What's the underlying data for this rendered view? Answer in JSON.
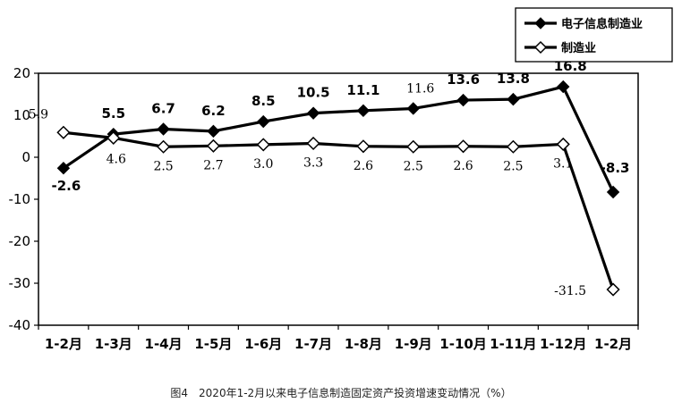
{
  "caption": "图4　2020年1-2月以来电子信息制造固定资产投资增速变动情况（%）",
  "chart_data": {
    "type": "line",
    "categories": [
      "1-2月",
      "1-3月",
      "1-4月",
      "1-5月",
      "1-6月",
      "1-7月",
      "1-8月",
      "1-9月",
      "1-10月",
      "1-11月",
      "1-12月",
      "1-2月"
    ],
    "ylim": [
      -40,
      20
    ],
    "yticks": [
      20,
      10,
      0,
      -10,
      -20,
      -30,
      -40
    ],
    "grid": false,
    "legend_position": "top-right",
    "series": [
      {
        "name": "电子信息制造业",
        "values": [
          -2.6,
          5.5,
          6.7,
          6.2,
          8.5,
          10.5,
          11.1,
          11.6,
          13.6,
          13.8,
          16.8,
          -8.3
        ],
        "labels": [
          "-2.6",
          "5.5",
          "6.7",
          "6.2",
          "8.5",
          "10.5",
          "11.1",
          "11.6",
          "13.6",
          "13.8",
          "16.8",
          "-8.3"
        ],
        "marker": "filled-diamond",
        "color": "#000000"
      },
      {
        "name": "制造业",
        "values": [
          5.9,
          4.6,
          2.5,
          2.7,
          3.0,
          3.3,
          2.6,
          2.5,
          2.6,
          2.5,
          3.1,
          -31.5
        ],
        "labels": [
          "5.9",
          "4.6",
          "2.5",
          "2.7",
          "3.0",
          "3.3",
          "2.6",
          "2.5",
          "2.6",
          "2.5",
          "3.1",
          "-31.5"
        ],
        "marker": "hollow-diamond",
        "color": "#000000"
      }
    ]
  }
}
